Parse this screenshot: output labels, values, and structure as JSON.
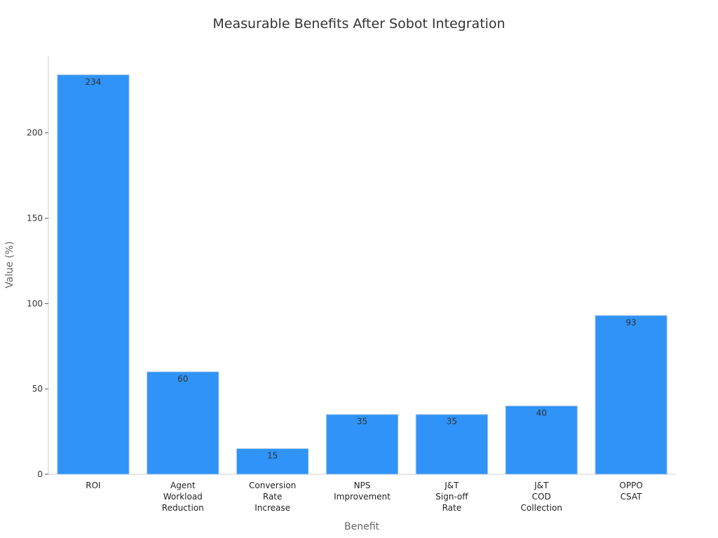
{
  "chart_data": {
    "type": "bar",
    "title": "Measurable Benefits After Sobot Integration",
    "xlabel": "Benefit",
    "ylabel": "Value (%)",
    "categories": [
      [
        "ROI"
      ],
      [
        "Agent",
        "Workload",
        "Reduction"
      ],
      [
        "Conversion",
        "Rate",
        "Increase"
      ],
      [
        "NPS",
        "Improvement"
      ],
      [
        "J&T",
        "Sign-off",
        "Rate"
      ],
      [
        "J&T",
        "COD",
        "Collection"
      ],
      [
        "OPPO",
        "CSAT"
      ]
    ],
    "values": [
      234,
      60,
      15,
      35,
      35,
      40,
      93
    ],
    "data_labels": [
      "234",
      "60",
      "15",
      "35",
      "35",
      "40",
      "93"
    ],
    "yticks": [
      0,
      50,
      100,
      150,
      200
    ],
    "ylim": [
      0,
      245
    ],
    "grid": false,
    "bar_color": "#2f93f7"
  }
}
